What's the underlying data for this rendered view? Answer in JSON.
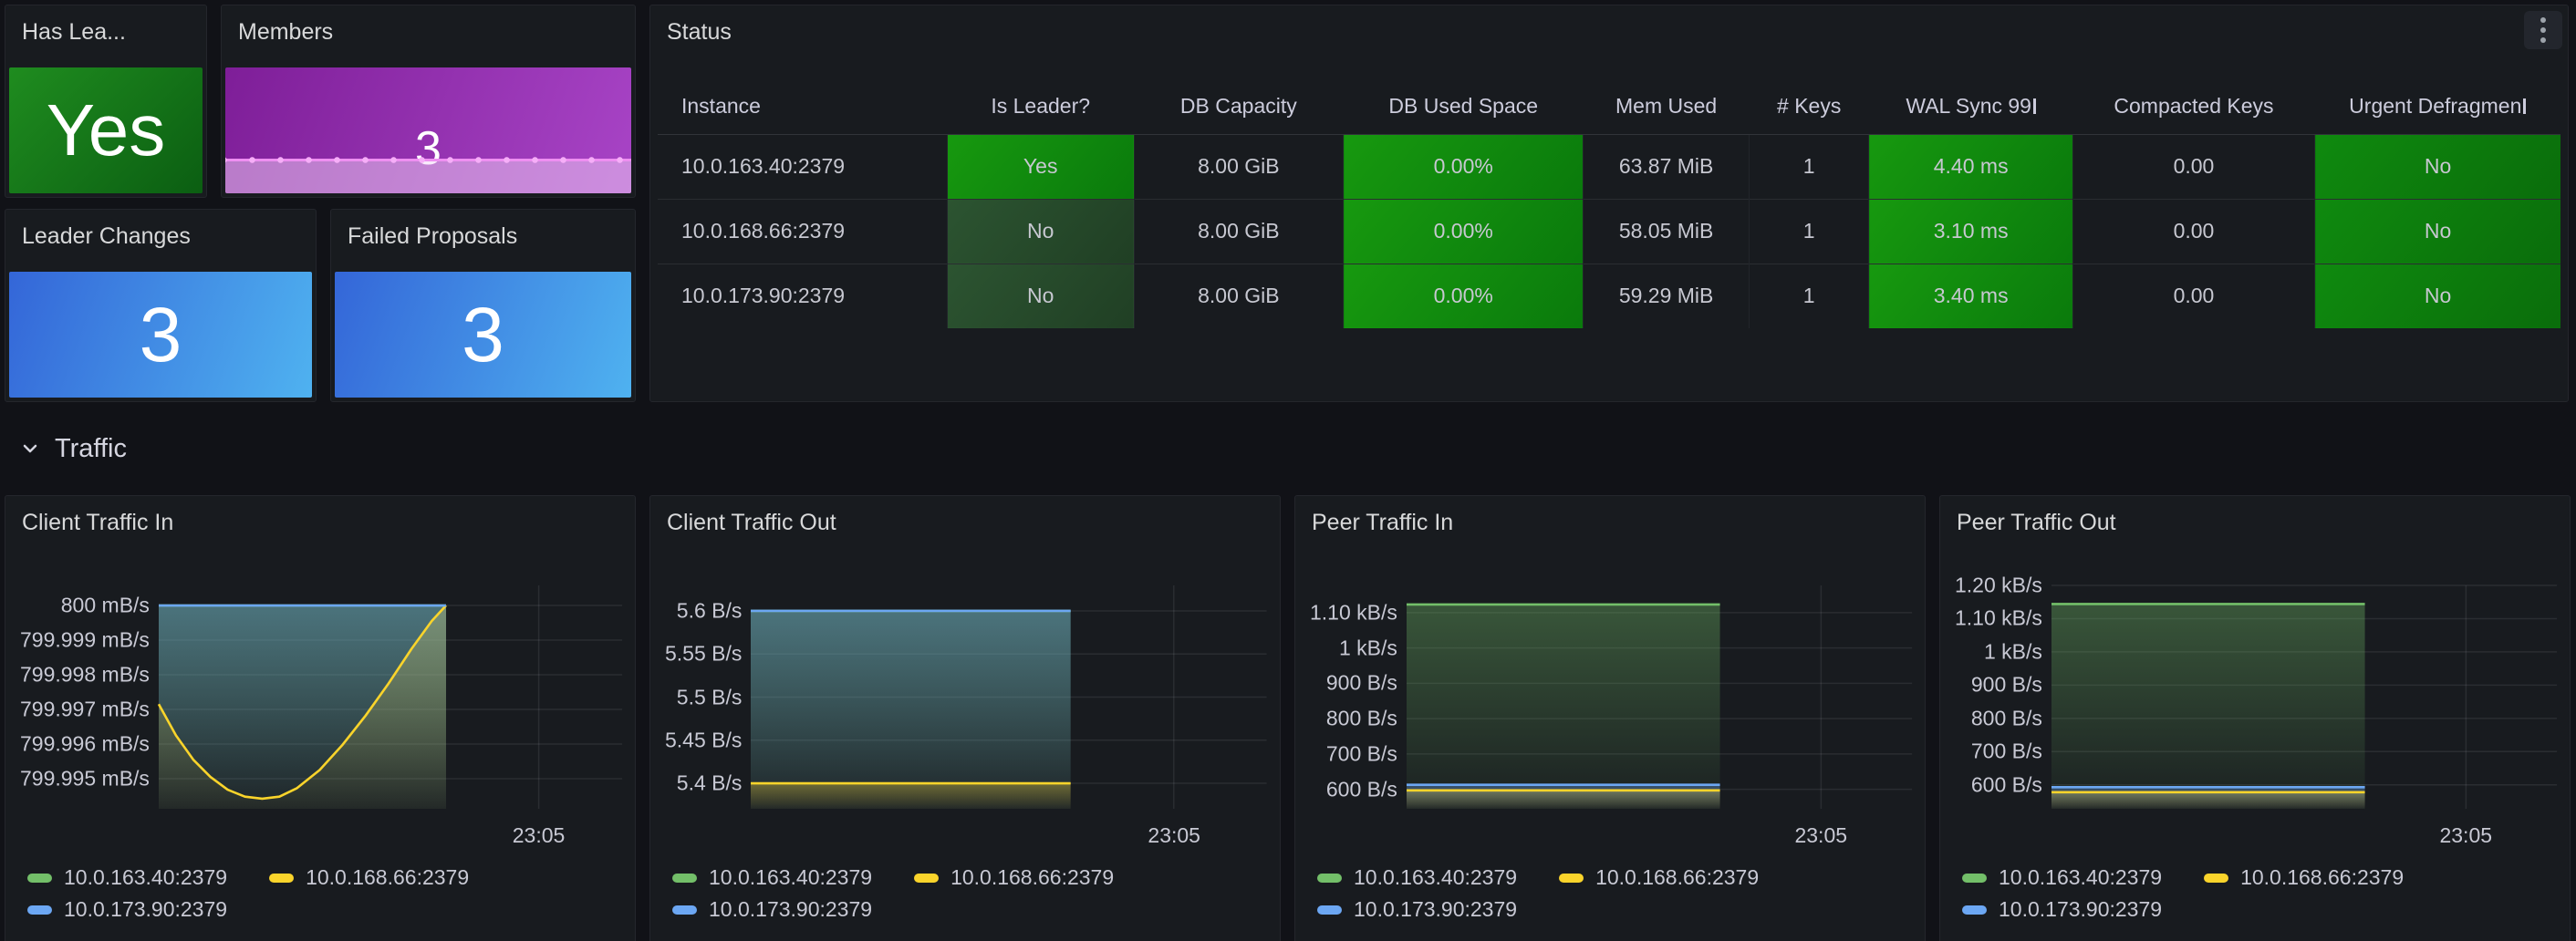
{
  "colors": {
    "background": "#111217",
    "panel": "#181B1F",
    "text": "#CCCCDC",
    "cell_green_bright": "#12900E",
    "cell_green_dim": "#2C5431",
    "cell_green_mid": "#0D7C0D",
    "stat_green": "#1F8C1F",
    "stat_blue": "#3466D8",
    "stat_purple": "#8E2BA8",
    "grid": "rgba(204,204,220,0.10)",
    "series": {
      "green": "#73BF69",
      "yellow": "#FAD42B",
      "blue": "#6CA7F3"
    }
  },
  "stats": {
    "has_leader": {
      "title": "Has Lea...",
      "value": "Yes"
    },
    "members": {
      "title": "Members",
      "value": "3"
    },
    "leader_changes": {
      "title": "Leader Changes",
      "value": "3"
    },
    "failed_proposals": {
      "title": "Failed Proposals",
      "value": "3"
    }
  },
  "status_table": {
    "title": "Status",
    "kebab_icon": "kebab-menu",
    "col_widths": [
      15.2,
      9.8,
      11.0,
      12.6,
      8.7,
      6.3,
      10.7,
      12.7,
      12.9
    ],
    "columns": [
      {
        "label": "Instance",
        "align": "left"
      },
      {
        "label": "Is Leader?"
      },
      {
        "label": "DB Capacity"
      },
      {
        "label": "DB Used Space"
      },
      {
        "label": "Mem Used"
      },
      {
        "label": "# Keys"
      },
      {
        "label": "WAL Sync 99",
        "clipped": true
      },
      {
        "label": "Compacted Keys"
      },
      {
        "label": "Urgent Defragmen",
        "clipped": true
      }
    ],
    "rows": [
      {
        "cells": [
          "10.0.163.40:2379",
          "Yes",
          "8.00 GiB",
          "0.00%",
          "63.87 MiB",
          "1",
          "4.40 ms",
          "0.00",
          "No"
        ],
        "bg": [
          null,
          "bright",
          null,
          "bright",
          null,
          null,
          "bright",
          null,
          "mid"
        ]
      },
      {
        "cells": [
          "10.0.168.66:2379",
          "No",
          "8.00 GiB",
          "0.00%",
          "58.05 MiB",
          "1",
          "3.10 ms",
          "0.00",
          "No"
        ],
        "bg": [
          null,
          "dim",
          null,
          "bright",
          null,
          null,
          "bright",
          null,
          "mid"
        ]
      },
      {
        "cells": [
          "10.0.173.90:2379",
          "No",
          "8.00 GiB",
          "0.00%",
          "59.29 MiB",
          "1",
          "3.40 ms",
          "0.00",
          "No"
        ],
        "bg": [
          null,
          "dim",
          null,
          "bright",
          null,
          null,
          "bright",
          null,
          "mid"
        ]
      }
    ]
  },
  "traffic_section": {
    "label": "Traffic",
    "collapsed": false
  },
  "chart_data": [
    {
      "type": "line",
      "title": "Client Traffic In",
      "ylim": [
        799.99413,
        800.00058
      ],
      "yticks": [
        {
          "label": "800 mB/s",
          "value": 800
        },
        {
          "label": "799.999 mB/s",
          "value": 799.999
        },
        {
          "label": "799.998 mB/s",
          "value": 799.998
        },
        {
          "label": "799.997 mB/s",
          "value": 799.997
        },
        {
          "label": "799.996 mB/s",
          "value": 799.996
        },
        {
          "label": "799.995 mB/s",
          "value": 799.995
        }
      ],
      "xtick": {
        "label": "23:05",
        "x": 0.82
      },
      "data_extent": 0.62,
      "series": [
        {
          "name": "10.0.163.40:2379",
          "color": "green",
          "points": [
            [
              0,
              800
            ],
            [
              1,
              800
            ]
          ]
        },
        {
          "name": "10.0.168.66:2379",
          "color": "yellow",
          "points": [
            [
              0,
              799.99715
            ],
            [
              0.06,
              799.99625
            ],
            [
              0.12,
              799.99555
            ],
            [
              0.18,
              799.99505
            ],
            [
              0.24,
              799.99468
            ],
            [
              0.3,
              799.99448
            ],
            [
              0.36,
              799.99442
            ],
            [
              0.42,
              799.99448
            ],
            [
              0.48,
              799.99472
            ],
            [
              0.56,
              799.99525
            ],
            [
              0.64,
              799.99598
            ],
            [
              0.72,
              799.99682
            ],
            [
              0.8,
              799.99775
            ],
            [
              0.88,
              799.99875
            ],
            [
              0.95,
              799.99955
            ],
            [
              1,
              800.0
            ]
          ]
        },
        {
          "name": "10.0.173.90:2379",
          "color": "blue",
          "points": [
            [
              0,
              800
            ],
            [
              1,
              800
            ]
          ]
        }
      ]
    },
    {
      "type": "line",
      "title": "Client Traffic Out",
      "ylim": [
        5.3704,
        5.6296
      ],
      "yticks": [
        {
          "label": "5.6 B/s",
          "value": 5.6
        },
        {
          "label": "5.55 B/s",
          "value": 5.55
        },
        {
          "label": "5.5 B/s",
          "value": 5.5
        },
        {
          "label": "5.45 B/s",
          "value": 5.45
        },
        {
          "label": "5.4 B/s",
          "value": 5.4
        }
      ],
      "xtick": {
        "label": "23:05",
        "x": 0.82
      },
      "data_extent": 0.62,
      "series": [
        {
          "name": "10.0.163.40:2379",
          "color": "green",
          "points": [
            [
              0,
              5.6
            ],
            [
              1,
              5.6
            ]
          ]
        },
        {
          "name": "10.0.168.66:2379",
          "color": "yellow",
          "points": [
            [
              0,
              5.4
            ],
            [
              1,
              5.4
            ]
          ]
        },
        {
          "name": "10.0.173.90:2379",
          "color": "blue",
          "points": [
            [
              0,
              5.6
            ],
            [
              1,
              5.6
            ]
          ]
        }
      ]
    },
    {
      "type": "line",
      "title": "Peer Traffic In",
      "ylim": [
        545,
        1177
      ],
      "yticks": [
        {
          "label": "1.10 kB/s",
          "value": 1100
        },
        {
          "label": "1 kB/s",
          "value": 1000
        },
        {
          "label": "900 B/s",
          "value": 900
        },
        {
          "label": "800 B/s",
          "value": 800
        },
        {
          "label": "700 B/s",
          "value": 700
        },
        {
          "label": "600 B/s",
          "value": 600
        }
      ],
      "xtick": {
        "label": "23:05",
        "x": 0.82
      },
      "data_extent": 0.62,
      "series": [
        {
          "name": "10.0.163.40:2379",
          "color": "green",
          "points": [
            [
              0,
              1123
            ],
            [
              1,
              1123
            ]
          ]
        },
        {
          "name": "10.0.168.66:2379",
          "color": "yellow",
          "points": [
            [
              0,
              597
            ],
            [
              1,
              597
            ]
          ]
        },
        {
          "name": "10.0.173.90:2379",
          "color": "blue",
          "points": [
            [
              0,
              613
            ],
            [
              1,
              613
            ]
          ]
        }
      ]
    },
    {
      "type": "line",
      "title": "Peer Traffic Out",
      "ylim": [
        528,
        1200
      ],
      "yticks": [
        {
          "label": "1.20 kB/s",
          "value": 1200
        },
        {
          "label": "1.10 kB/s",
          "value": 1100
        },
        {
          "label": "1 kB/s",
          "value": 1000
        },
        {
          "label": "900 B/s",
          "value": 900
        },
        {
          "label": "800 B/s",
          "value": 800
        },
        {
          "label": "700 B/s",
          "value": 700
        },
        {
          "label": "600 B/s",
          "value": 600
        }
      ],
      "xtick": {
        "label": "23:05",
        "x": 0.82
      },
      "data_extent": 0.62,
      "series": [
        {
          "name": "10.0.163.40:2379",
          "color": "green",
          "points": [
            [
              0,
              1144
            ],
            [
              1,
              1144
            ]
          ]
        },
        {
          "name": "10.0.168.66:2379",
          "color": "yellow",
          "points": [
            [
              0,
              578
            ],
            [
              1,
              578
            ]
          ]
        },
        {
          "name": "10.0.173.90:2379",
          "color": "blue",
          "points": [
            [
              0,
              593
            ],
            [
              1,
              593
            ]
          ]
        }
      ]
    }
  ]
}
